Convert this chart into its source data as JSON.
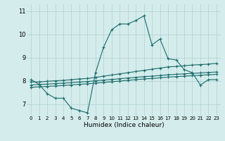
{
  "title": "",
  "xlabel": "Humidex (Indice chaleur)",
  "bg_color": "#d4ecec",
  "grid_color": "#b0d0d0",
  "line_color": "#1a6b6b",
  "xlim": [
    -0.5,
    23.5
  ],
  "ylim": [
    6.5,
    11.3
  ],
  "yticks": [
    7,
    8,
    9,
    10,
    11
  ],
  "xticks": [
    0,
    1,
    2,
    3,
    4,
    5,
    6,
    7,
    8,
    9,
    10,
    11,
    12,
    13,
    14,
    15,
    16,
    17,
    18,
    19,
    20,
    21,
    22,
    23
  ],
  "series": [
    {
      "x": [
        0,
        1,
        2,
        3,
        4,
        5,
        6,
        7,
        8,
        9,
        10,
        11,
        12,
        13,
        14,
        15,
        16,
        17,
        18,
        19,
        20,
        21,
        22,
        23
      ],
      "y": [
        8.05,
        7.85,
        7.45,
        7.25,
        7.25,
        6.82,
        6.72,
        6.62,
        8.35,
        9.45,
        10.2,
        10.45,
        10.45,
        10.6,
        10.8,
        9.55,
        9.8,
        8.95,
        8.9,
        8.48,
        8.35,
        7.82,
        8.05,
        8.05
      ]
    },
    {
      "x": [
        0,
        1,
        2,
        3,
        4,
        5,
        6,
        7,
        8,
        9,
        10,
        11,
        12,
        13,
        14,
        15,
        16,
        17,
        18,
        19,
        20,
        21,
        22,
        23
      ],
      "y": [
        7.95,
        7.95,
        7.98,
        8.0,
        8.02,
        8.05,
        8.08,
        8.1,
        8.15,
        8.2,
        8.25,
        8.3,
        8.35,
        8.4,
        8.45,
        8.5,
        8.55,
        8.6,
        8.62,
        8.65,
        8.68,
        8.7,
        8.72,
        8.75
      ]
    },
    {
      "x": [
        0,
        1,
        2,
        3,
        4,
        5,
        6,
        7,
        8,
        9,
        10,
        11,
        12,
        13,
        14,
        15,
        16,
        17,
        18,
        19,
        20,
        21,
        22,
        23
      ],
      "y": [
        7.82,
        7.84,
        7.86,
        7.88,
        7.9,
        7.92,
        7.95,
        7.97,
        8.0,
        8.03,
        8.06,
        8.09,
        8.12,
        8.15,
        8.18,
        8.2,
        8.23,
        8.26,
        8.28,
        8.3,
        8.32,
        8.34,
        8.36,
        8.38
      ]
    },
    {
      "x": [
        0,
        1,
        2,
        3,
        4,
        5,
        6,
        7,
        8,
        9,
        10,
        11,
        12,
        13,
        14,
        15,
        16,
        17,
        18,
        19,
        20,
        21,
        22,
        23
      ],
      "y": [
        7.72,
        7.74,
        7.76,
        7.78,
        7.8,
        7.82,
        7.85,
        7.87,
        7.9,
        7.93,
        7.96,
        7.99,
        8.02,
        8.05,
        8.08,
        8.1,
        8.13,
        8.16,
        8.18,
        8.2,
        8.22,
        8.24,
        8.26,
        8.28
      ]
    }
  ]
}
